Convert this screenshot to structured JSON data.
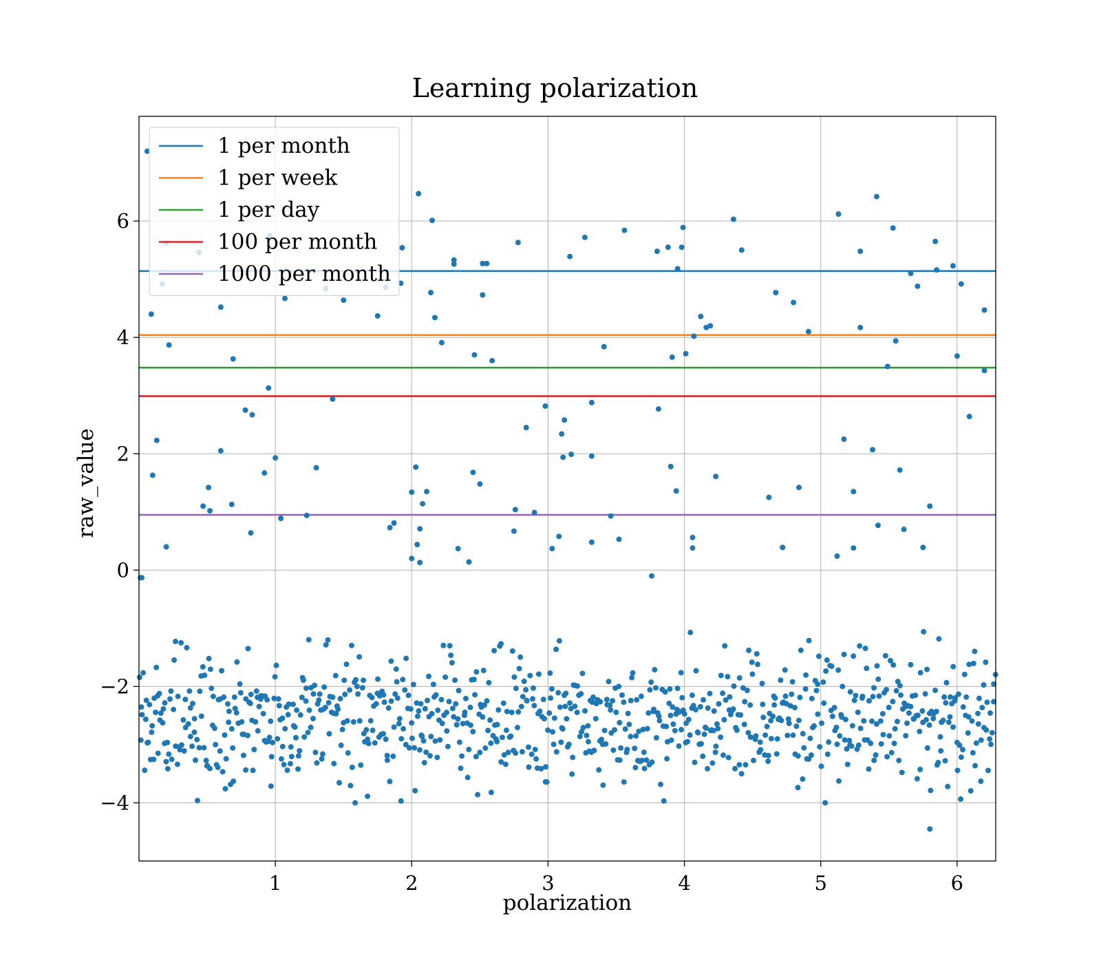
{
  "chart_data": {
    "type": "scatter",
    "title": "Learning polarization",
    "xlabel": "polarization",
    "ylabel": "raw_value",
    "xlim": [
      0.0,
      6.2832
    ],
    "ylim": [
      -5.0,
      7.8
    ],
    "grid": true,
    "legend_position": "top-left",
    "x_ticks": [
      1,
      2,
      3,
      4,
      5,
      6
    ],
    "y_ticks": [
      -4,
      -2,
      0,
      2,
      4,
      6
    ],
    "x_tick_labels": [
      "1",
      "2",
      "3",
      "4",
      "5",
      "6"
    ],
    "y_tick_labels": [
      "−4",
      "−2",
      "0",
      "2",
      "4",
      "6"
    ],
    "scatter_color": "#1f77b4",
    "scatter_point_count": 1000,
    "scatter_points_sampled": [
      [
        0.02,
        -0.13
      ],
      [
        0.06,
        7.2
      ],
      [
        0.09,
        4.4
      ],
      [
        0.1,
        1.63
      ],
      [
        0.13,
        2.23
      ],
      [
        0.2,
        0.4
      ],
      [
        0.22,
        3.87
      ],
      [
        0.47,
        1.1
      ],
      [
        0.52,
        1.02
      ],
      [
        0.51,
        1.42
      ],
      [
        0.6,
        4.52
      ],
      [
        0.6,
        2.05
      ],
      [
        0.69,
        3.63
      ],
      [
        0.68,
        1.13
      ],
      [
        0.78,
        2.75
      ],
      [
        0.83,
        2.67
      ],
      [
        0.82,
        0.64
      ],
      [
        0.92,
        1.67
      ],
      [
        0.95,
        3.13
      ],
      [
        1.0,
        1.93
      ],
      [
        1.04,
        0.89
      ],
      [
        1.07,
        4.67
      ],
      [
        1.23,
        0.94
      ],
      [
        1.3,
        1.76
      ],
      [
        1.42,
        2.94
      ],
      [
        1.5,
        4.64
      ],
      [
        1.75,
        4.37
      ],
      [
        1.92,
        4.93
      ],
      [
        1.93,
        5.54
      ],
      [
        1.87,
        0.81
      ],
      [
        1.84,
        0.73
      ],
      [
        2.0,
        1.34
      ],
      [
        2.03,
        1.77
      ],
      [
        2.06,
        0.71
      ],
      [
        2.08,
        1.14
      ],
      [
        2.11,
        1.35
      ],
      [
        2.05,
        6.47
      ],
      [
        2.15,
        6.01
      ],
      [
        2.14,
        4.77
      ],
      [
        2.17,
        4.34
      ],
      [
        2.22,
        3.91
      ],
      [
        2.04,
        0.44
      ],
      [
        2.06,
        0.13
      ],
      [
        2.0,
        0.2
      ],
      [
        2.34,
        0.37
      ],
      [
        2.31,
        5.26
      ],
      [
        2.31,
        5.33
      ],
      [
        2.42,
        0.14
      ],
      [
        2.45,
        1.68
      ],
      [
        2.46,
        3.7
      ],
      [
        2.52,
        5.27
      ],
      [
        2.55,
        5.27
      ],
      [
        2.52,
        4.73
      ],
      [
        2.5,
        1.48
      ],
      [
        2.59,
        3.6
      ],
      [
        2.76,
        1.04
      ],
      [
        2.75,
        0.67
      ],
      [
        2.78,
        5.63
      ],
      [
        2.84,
        2.45
      ],
      [
        2.9,
        0.99
      ],
      [
        2.98,
        2.82
      ],
      [
        3.03,
        0.37
      ],
      [
        3.1,
        2.34
      ],
      [
        3.12,
        2.58
      ],
      [
        3.11,
        1.94
      ],
      [
        3.16,
        5.39
      ],
      [
        3.17,
        1.99
      ],
      [
        3.08,
        0.58
      ],
      [
        3.27,
        5.72
      ],
      [
        3.32,
        1.96
      ],
      [
        3.32,
        2.88
      ],
      [
        3.32,
        0.48
      ],
      [
        3.41,
        3.84
      ],
      [
        3.46,
        0.93
      ],
      [
        3.56,
        5.84
      ],
      [
        3.52,
        0.53
      ],
      [
        3.8,
        5.48
      ],
      [
        3.81,
        2.77
      ],
      [
        3.88,
        5.55
      ],
      [
        3.91,
        3.66
      ],
      [
        3.9,
        1.78
      ],
      [
        3.94,
        1.36
      ],
      [
        3.95,
        5.18
      ],
      [
        3.98,
        5.55
      ],
      [
        3.99,
        5.89
      ],
      [
        4.01,
        3.72
      ],
      [
        4.07,
        4.02
      ],
      [
        4.12,
        4.36
      ],
      [
        4.16,
        4.17
      ],
      [
        4.19,
        4.2
      ],
      [
        4.06,
        0.56
      ],
      [
        4.06,
        0.38
      ],
      [
        4.23,
        1.61
      ],
      [
        4.36,
        6.03
      ],
      [
        4.42,
        5.5
      ],
      [
        4.62,
        1.25
      ],
      [
        4.67,
        4.77
      ],
      [
        4.72,
        0.39
      ],
      [
        4.8,
        4.6
      ],
      [
        4.84,
        1.42
      ],
      [
        4.91,
        4.1
      ],
      [
        5.12,
        0.24
      ],
      [
        5.13,
        6.12
      ],
      [
        5.17,
        2.25
      ],
      [
        5.24,
        1.35
      ],
      [
        5.24,
        0.38
      ],
      [
        5.29,
        5.48
      ],
      [
        5.29,
        4.17
      ],
      [
        5.38,
        2.07
      ],
      [
        5.41,
        6.42
      ],
      [
        5.42,
        0.77
      ],
      [
        5.49,
        3.5
      ],
      [
        5.53,
        5.88
      ],
      [
        5.55,
        3.94
      ],
      [
        5.58,
        1.72
      ],
      [
        5.61,
        0.7
      ],
      [
        5.66,
        5.1
      ],
      [
        5.71,
        4.88
      ],
      [
        5.75,
        0.39
      ],
      [
        5.8,
        1.1
      ],
      [
        5.84,
        5.65
      ],
      [
        5.85,
        5.16
      ],
      [
        5.97,
        5.23
      ],
      [
        6.0,
        3.68
      ],
      [
        6.03,
        4.92
      ],
      [
        6.09,
        2.64
      ],
      [
        6.2,
        4.47
      ],
      [
        6.2,
        3.43
      ],
      [
        0.17,
        4.92
      ],
      [
        0.2,
        5.62
      ],
      [
        0.44,
        5.46
      ],
      [
        0.96,
        5.75
      ],
      [
        1.37,
        4.84
      ],
      [
        1.81,
        4.86
      ]
    ],
    "lower_cluster": {
      "y_range_main": [
        -4.0,
        -0.5
      ],
      "y_extreme_min": -4.45,
      "y_extreme_max": -0.1
    },
    "series": [
      {
        "name": "1 per month",
        "y": 5.14,
        "color": "#1f77b4"
      },
      {
        "name": "1 per week",
        "y": 4.04,
        "color": "#ff7f0e"
      },
      {
        "name": "1 per day",
        "y": 3.48,
        "color": "#2ca02c"
      },
      {
        "name": "100 per month",
        "y": 2.99,
        "color": "#d62728"
      },
      {
        "name": "1000 per month",
        "y": 0.95,
        "color": "#9467bd"
      }
    ]
  }
}
